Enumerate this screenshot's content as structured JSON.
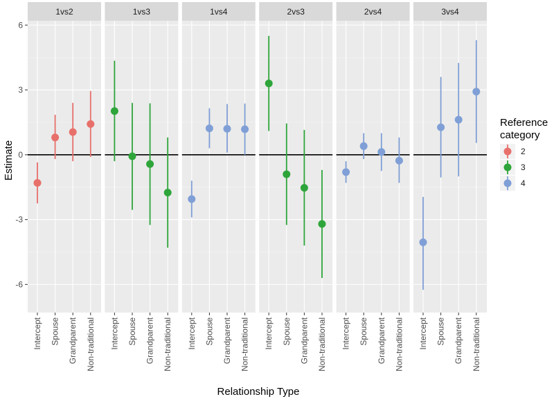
{
  "chart_data": {
    "type": "pointrange-facet",
    "xlabel": "Relationship Type",
    "ylabel": "Estimate",
    "ylim": [
      -7.3,
      6.2
    ],
    "yticks": [
      6,
      3,
      0,
      -3,
      -6
    ],
    "categories": [
      "Intercept",
      "Spouse",
      "Grandparent",
      "Non-traditional"
    ],
    "legend": {
      "title_line1": "Reference",
      "title_line2": "category",
      "entries": [
        {
          "label": "2",
          "color": "#E8706B"
        },
        {
          "label": "3",
          "color": "#2EA53A"
        },
        {
          "label": "4",
          "color": "#7F9FD6"
        }
      ]
    },
    "panels": [
      {
        "label": "1vs2",
        "reference": "2",
        "points": [
          {
            "category": "Intercept",
            "estimate": -1.3,
            "lower": -2.25,
            "upper": -0.35
          },
          {
            "category": "Spouse",
            "estimate": 0.8,
            "lower": -0.2,
            "upper": 1.85
          },
          {
            "category": "Grandparent",
            "estimate": 1.05,
            "lower": -0.3,
            "upper": 2.4
          },
          {
            "category": "Non-traditional",
            "estimate": 1.42,
            "lower": -0.1,
            "upper": 2.95
          }
        ]
      },
      {
        "label": "1vs3",
        "reference": "3",
        "points": [
          {
            "category": "Intercept",
            "estimate": 2.02,
            "lower": -0.3,
            "upper": 4.35
          },
          {
            "category": "Spouse",
            "estimate": -0.07,
            "lower": -2.55,
            "upper": 2.4
          },
          {
            "category": "Grandparent",
            "estimate": -0.43,
            "lower": -3.25,
            "upper": 2.38
          },
          {
            "category": "Non-traditional",
            "estimate": -1.75,
            "lower": -4.3,
            "upper": 0.8
          }
        ]
      },
      {
        "label": "1vs4",
        "reference": "4",
        "points": [
          {
            "category": "Intercept",
            "estimate": -2.05,
            "lower": -2.9,
            "upper": -1.2
          },
          {
            "category": "Spouse",
            "estimate": 1.22,
            "lower": 0.3,
            "upper": 2.15
          },
          {
            "category": "Grandparent",
            "estimate": 1.2,
            "lower": 0.1,
            "upper": 2.35
          },
          {
            "category": "Non-traditional",
            "estimate": 1.18,
            "lower": 0.0,
            "upper": 2.37
          }
        ]
      },
      {
        "label": "2vs3",
        "reference": "3",
        "points": [
          {
            "category": "Intercept",
            "estimate": 3.3,
            "lower": 1.1,
            "upper": 5.5
          },
          {
            "category": "Spouse",
            "estimate": -0.9,
            "lower": -3.25,
            "upper": 1.45
          },
          {
            "category": "Grandparent",
            "estimate": -1.53,
            "lower": -4.2,
            "upper": 1.15
          },
          {
            "category": "Non-traditional",
            "estimate": -3.2,
            "lower": -5.7,
            "upper": -0.7
          }
        ]
      },
      {
        "label": "2vs4",
        "reference": "4",
        "points": [
          {
            "category": "Intercept",
            "estimate": -0.8,
            "lower": -1.3,
            "upper": -0.3
          },
          {
            "category": "Spouse",
            "estimate": 0.4,
            "lower": -0.2,
            "upper": 1.0
          },
          {
            "category": "Grandparent",
            "estimate": 0.13,
            "lower": -0.75,
            "upper": 1.0
          },
          {
            "category": "Non-traditional",
            "estimate": -0.27,
            "lower": -1.3,
            "upper": 0.8
          }
        ]
      },
      {
        "label": "3vs4",
        "reference": "4",
        "points": [
          {
            "category": "Intercept",
            "estimate": -4.05,
            "lower": -6.25,
            "upper": -1.95
          },
          {
            "category": "Spouse",
            "estimate": 1.27,
            "lower": -1.05,
            "upper": 3.6
          },
          {
            "category": "Grandparent",
            "estimate": 1.62,
            "lower": -1.0,
            "upper": 4.25
          },
          {
            "category": "Non-traditional",
            "estimate": 2.92,
            "lower": 0.55,
            "upper": 5.3
          }
        ]
      }
    ]
  }
}
